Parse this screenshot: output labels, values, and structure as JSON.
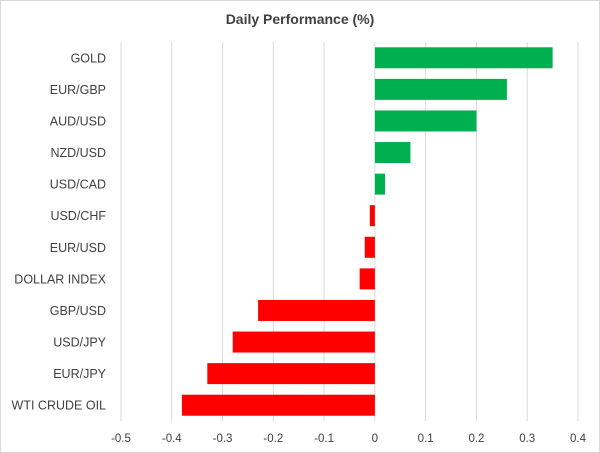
{
  "chart_data": {
    "type": "bar",
    "orientation": "horizontal",
    "title": "Daily Performance (%)",
    "xlabel": "",
    "ylabel": "",
    "xlim": [
      -0.5,
      0.4
    ],
    "xticks": [
      "-0.5",
      "-0.4",
      "-0.3",
      "-0.2",
      "-0.1",
      "0",
      "0.1",
      "0.2",
      "0.3",
      "0.4"
    ],
    "grid": true,
    "categories": [
      "GOLD",
      "EUR/GBP",
      "AUD/USD",
      "NZD/USD",
      "USD/CAD",
      "USD/CHF",
      "EUR/USD",
      "DOLLAR INDEX",
      "GBP/USD",
      "USD/JPY",
      "EUR/JPY",
      "WTI CRUDE OIL"
    ],
    "values": [
      0.35,
      0.26,
      0.2,
      0.07,
      0.02,
      -0.01,
      -0.02,
      -0.03,
      -0.23,
      -0.28,
      -0.33,
      -0.38
    ],
    "colors": {
      "positive": "#00b050",
      "negative": "#ff0000"
    }
  }
}
